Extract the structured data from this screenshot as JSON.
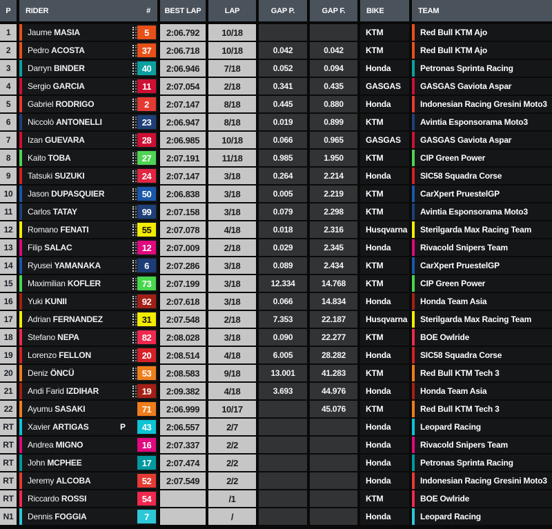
{
  "header": {
    "p": "P",
    "rider": "RIDER",
    "num": "#",
    "best_lap": "BEST LAP",
    "lap": "LAP",
    "gap_p": "GAP P.",
    "gap_f": "GAP F.",
    "bike": "BIKE",
    "team": "TEAM"
  },
  "colors": {
    "header_bg": "#4a525c",
    "position_bg": "#c6c6c6",
    "time_cell_bg": "#c6c6c6",
    "gap_cell_bg": "#323335",
    "dark_cell_bg": "#17181a",
    "page_bg": "#0a0a0a"
  },
  "rows": [
    {
      "pos": "1",
      "first": "Jaume",
      "last": "MASIA",
      "flag": "",
      "num": "5",
      "badge": "#e8501a",
      "badge_text": "#ffffff",
      "accent": "#e8501a",
      "dots": true,
      "best": "2:06.792",
      "lap": "10/18",
      "gap_p": "",
      "gap_f": "",
      "bike": "KTM",
      "team": "Red Bull KTM Ajo"
    },
    {
      "pos": "2",
      "first": "Pedro",
      "last": "ACOSTA",
      "flag": "",
      "num": "37",
      "badge": "#e8501a",
      "badge_text": "#ffffff",
      "accent": "#e8501a",
      "dots": true,
      "best": "2:06.718",
      "lap": "10/18",
      "gap_p": "0.042",
      "gap_f": "0.042",
      "bike": "KTM",
      "team": "Red Bull KTM Ajo"
    },
    {
      "pos": "3",
      "first": "Darryn",
      "last": "BINDER",
      "flag": "",
      "num": "40",
      "badge": "#0ba1a1",
      "badge_text": "#ffffff",
      "accent": "#0ba1a1",
      "dots": true,
      "best": "2:06.946",
      "lap": "7/18",
      "gap_p": "0.052",
      "gap_f": "0.094",
      "bike": "Honda",
      "team": "Petronas Sprinta Racing"
    },
    {
      "pos": "4",
      "first": "Sergio",
      "last": "GARCIA",
      "flag": "",
      "num": "11",
      "badge": "#ce1035",
      "badge_text": "#ffffff",
      "accent": "#ce1035",
      "dots": true,
      "best": "2:07.054",
      "lap": "2/18",
      "gap_p": "0.341",
      "gap_f": "0.435",
      "bike": "GASGAS",
      "team": "GASGAS Gaviota Aspar"
    },
    {
      "pos": "5",
      "first": "Gabriel",
      "last": "RODRIGO",
      "flag": "",
      "num": "2",
      "badge": "#e43a31",
      "badge_text": "#ffffff",
      "accent": "#e43a31",
      "dots": true,
      "best": "2:07.147",
      "lap": "8/18",
      "gap_p": "0.445",
      "gap_f": "0.880",
      "bike": "Honda",
      "team": "Indonesian Racing Gresini Moto3"
    },
    {
      "pos": "6",
      "first": "Niccolò",
      "last": "ANTONELLI",
      "flag": "",
      "num": "23",
      "badge": "#1f4078",
      "badge_text": "#ffffff",
      "accent": "#1f4078",
      "dots": true,
      "best": "2:06.947",
      "lap": "8/18",
      "gap_p": "0.019",
      "gap_f": "0.899",
      "bike": "KTM",
      "team": "Avintia Esponsorama Moto3"
    },
    {
      "pos": "7",
      "first": "Izan",
      "last": "GUEVARA",
      "flag": "",
      "num": "28",
      "badge": "#ce1035",
      "badge_text": "#ffffff",
      "accent": "#ce1035",
      "dots": true,
      "best": "2:06.985",
      "lap": "10/18",
      "gap_p": "0.066",
      "gap_f": "0.965",
      "bike": "GASGAS",
      "team": "GASGAS Gaviota Aspar"
    },
    {
      "pos": "8",
      "first": "Kaito",
      "last": "TOBA",
      "flag": "",
      "num": "27",
      "badge": "#4fd454",
      "badge_text": "#ffffff",
      "accent": "#4fd454",
      "dots": true,
      "best": "2:07.191",
      "lap": "11/18",
      "gap_p": "0.985",
      "gap_f": "1.950",
      "bike": "KTM",
      "team": "CIP Green Power"
    },
    {
      "pos": "9",
      "first": "Tatsuki",
      "last": "SUZUKI",
      "flag": "",
      "num": "24",
      "badge": "#e22542",
      "badge_text": "#ffffff",
      "accent": "#d62028",
      "dots": true,
      "best": "2:07.147",
      "lap": "3/18",
      "gap_p": "0.264",
      "gap_f": "2.214",
      "bike": "Honda",
      "team": "SIC58 Squadra Corse"
    },
    {
      "pos": "10",
      "first": "Jason",
      "last": "DUPASQUIER",
      "flag": "",
      "num": "50",
      "badge": "#1a57aa",
      "badge_text": "#ffffff",
      "accent": "#1a57aa",
      "dots": true,
      "best": "2:06.838",
      "lap": "3/18",
      "gap_p": "0.005",
      "gap_f": "2.219",
      "bike": "KTM",
      "team": "CarXpert PruestelGP"
    },
    {
      "pos": "11",
      "first": "Carlos",
      "last": "TATAY",
      "flag": "",
      "num": "99",
      "badge": "#1f4078",
      "badge_text": "#ffffff",
      "accent": "#1f4078",
      "dots": true,
      "best": "2:07.158",
      "lap": "3/18",
      "gap_p": "0.079",
      "gap_f": "2.298",
      "bike": "KTM",
      "team": "Avintia Esponsorama Moto3"
    },
    {
      "pos": "12",
      "first": "Romano",
      "last": "FENATI",
      "flag": "",
      "num": "55",
      "badge": "#f2ec00",
      "badge_text": "#111111",
      "accent": "#f2ec00",
      "dots": true,
      "best": "2:07.078",
      "lap": "4/18",
      "gap_p": "0.018",
      "gap_f": "2.316",
      "bike": "Husqvarna",
      "team": "Sterilgarda Max Racing Team"
    },
    {
      "pos": "13",
      "first": "Filip",
      "last": "SALAC",
      "flag": "",
      "num": "12",
      "badge": "#e0097e",
      "badge_text": "#ffffff",
      "accent": "#e0097e",
      "dots": true,
      "best": "2:07.009",
      "lap": "2/18",
      "gap_p": "0.029",
      "gap_f": "2.345",
      "bike": "Honda",
      "team": "Rivacold Snipers Team"
    },
    {
      "pos": "14",
      "first": "Ryusei",
      "last": "YAMANAKA",
      "flag": "",
      "num": "6",
      "badge": "#1d3d77",
      "badge_text": "#ffffff",
      "accent": "#1a57aa",
      "dots": true,
      "best": "2:07.286",
      "lap": "3/18",
      "gap_p": "0.089",
      "gap_f": "2.434",
      "bike": "KTM",
      "team": "CarXpert PruestelGP"
    },
    {
      "pos": "15",
      "first": "Maximilian",
      "last": "KOFLER",
      "flag": "",
      "num": "73",
      "badge": "#47d74b",
      "badge_text": "#ffffff",
      "accent": "#47d74b",
      "dots": true,
      "best": "2:07.199",
      "lap": "3/18",
      "gap_p": "12.334",
      "gap_f": "14.768",
      "bike": "KTM",
      "team": "CIP Green Power"
    },
    {
      "pos": "16",
      "first": "Yuki",
      "last": "KUNII",
      "flag": "",
      "num": "92",
      "badge": "#a42017",
      "badge_text": "#ffffff",
      "accent": "#a42017",
      "dots": true,
      "best": "2:07.618",
      "lap": "3/18",
      "gap_p": "0.066",
      "gap_f": "14.834",
      "bike": "Honda",
      "team": "Honda Team Asia"
    },
    {
      "pos": "17",
      "first": "Adrian",
      "last": "FERNANDEZ",
      "flag": "",
      "num": "31",
      "badge": "#f2ec00",
      "badge_text": "#111111",
      "accent": "#f2ec00",
      "dots": true,
      "best": "2:07.548",
      "lap": "2/18",
      "gap_p": "7.353",
      "gap_f": "22.187",
      "bike": "Husqvarna",
      "team": "Sterilgarda Max Racing Team"
    },
    {
      "pos": "18",
      "first": "Stefano",
      "last": "NEPA",
      "flag": "",
      "num": "82",
      "badge": "#f0284e",
      "badge_text": "#ffffff",
      "accent": "#f0284e",
      "dots": true,
      "best": "2:08.028",
      "lap": "3/18",
      "gap_p": "0.090",
      "gap_f": "22.277",
      "bike": "KTM",
      "team": "BOE Owlride"
    },
    {
      "pos": "19",
      "first": "Lorenzo",
      "last": "FELLON",
      "flag": "",
      "num": "20",
      "badge": "#d62028",
      "badge_text": "#ffffff",
      "accent": "#d62028",
      "dots": true,
      "best": "2:08.514",
      "lap": "4/18",
      "gap_p": "6.005",
      "gap_f": "28.282",
      "bike": "Honda",
      "team": "SIC58 Squadra Corse"
    },
    {
      "pos": "20",
      "first": "Deniz",
      "last": "ÖNCÜ",
      "flag": "",
      "num": "53",
      "badge": "#ef7d1a",
      "badge_text": "#ffffff",
      "accent": "#ef7d1a",
      "dots": true,
      "best": "2:08.583",
      "lap": "9/18",
      "gap_p": "13.001",
      "gap_f": "41.283",
      "bike": "KTM",
      "team": "Red Bull KTM Tech 3"
    },
    {
      "pos": "21",
      "first": "Andi Farid",
      "last": "IZDIHAR",
      "flag": "",
      "num": "19",
      "badge": "#a42017",
      "badge_text": "#ffffff",
      "accent": "#a42017",
      "dots": true,
      "best": "2:09.382",
      "lap": "4/18",
      "gap_p": "3.693",
      "gap_f": "44.976",
      "bike": "Honda",
      "team": "Honda Team Asia"
    },
    {
      "pos": "22",
      "first": "Ayumu",
      "last": "SASAKI",
      "flag": "",
      "num": "71",
      "badge": "#ef7d1a",
      "badge_text": "#ffffff",
      "accent": "#ef7d1a",
      "dots": false,
      "best": "2:06.999",
      "lap": "10/17",
      "gap_p": "",
      "gap_f": "45.076",
      "bike": "KTM",
      "team": "Red Bull KTM Tech 3"
    },
    {
      "pos": "RT",
      "first": "Xavier",
      "last": "ARTIGAS",
      "flag": "P",
      "num": "43",
      "badge": "#0cc4d5",
      "badge_text": "#ffffff",
      "accent": "#0cc4d5",
      "dots": false,
      "best": "2:06.557",
      "lap": "2/7",
      "gap_p": "",
      "gap_f": "",
      "bike": "Honda",
      "team": "Leopard Racing"
    },
    {
      "pos": "RT",
      "first": "Andrea",
      "last": "MIGNO",
      "flag": "",
      "num": "16",
      "badge": "#e0097e",
      "badge_text": "#ffffff",
      "accent": "#e0097e",
      "dots": false,
      "best": "2:07.337",
      "lap": "2/2",
      "gap_p": "",
      "gap_f": "",
      "bike": "Honda",
      "team": "Rivacold Snipers Team"
    },
    {
      "pos": "RT",
      "first": "John",
      "last": "MCPHEE",
      "flag": "",
      "num": "17",
      "badge": "#00999d",
      "badge_text": "#ffffff",
      "accent": "#00999d",
      "dots": false,
      "best": "2:07.474",
      "lap": "2/2",
      "gap_p": "",
      "gap_f": "",
      "bike": "Honda",
      "team": "Petronas Sprinta Racing"
    },
    {
      "pos": "RT",
      "first": "Jeremy",
      "last": "ALCOBA",
      "flag": "",
      "num": "52",
      "badge": "#e43a31",
      "badge_text": "#ffffff",
      "accent": "#e43a31",
      "dots": false,
      "best": "2:07.549",
      "lap": "2/2",
      "gap_p": "",
      "gap_f": "",
      "bike": "Honda",
      "team": "Indonesian Racing Gresini Moto3"
    },
    {
      "pos": "RT",
      "first": "Riccardo",
      "last": "ROSSI",
      "flag": "",
      "num": "54",
      "badge": "#f0284e",
      "badge_text": "#ffffff",
      "accent": "#f0284e",
      "dots": false,
      "best": "",
      "lap": "/1",
      "gap_p": "",
      "gap_f": "",
      "bike": "KTM",
      "team": "BOE Owlride"
    },
    {
      "pos": "N1",
      "first": "Dennis",
      "last": "FOGGIA",
      "flag": "",
      "num": "7",
      "badge": "#2cc8d8",
      "badge_text": "#ffffff",
      "accent": "#2cc8d8",
      "dots": false,
      "best": "",
      "lap": "/",
      "gap_p": "",
      "gap_f": "",
      "bike": "Honda",
      "team": "Leopard Racing"
    }
  ]
}
